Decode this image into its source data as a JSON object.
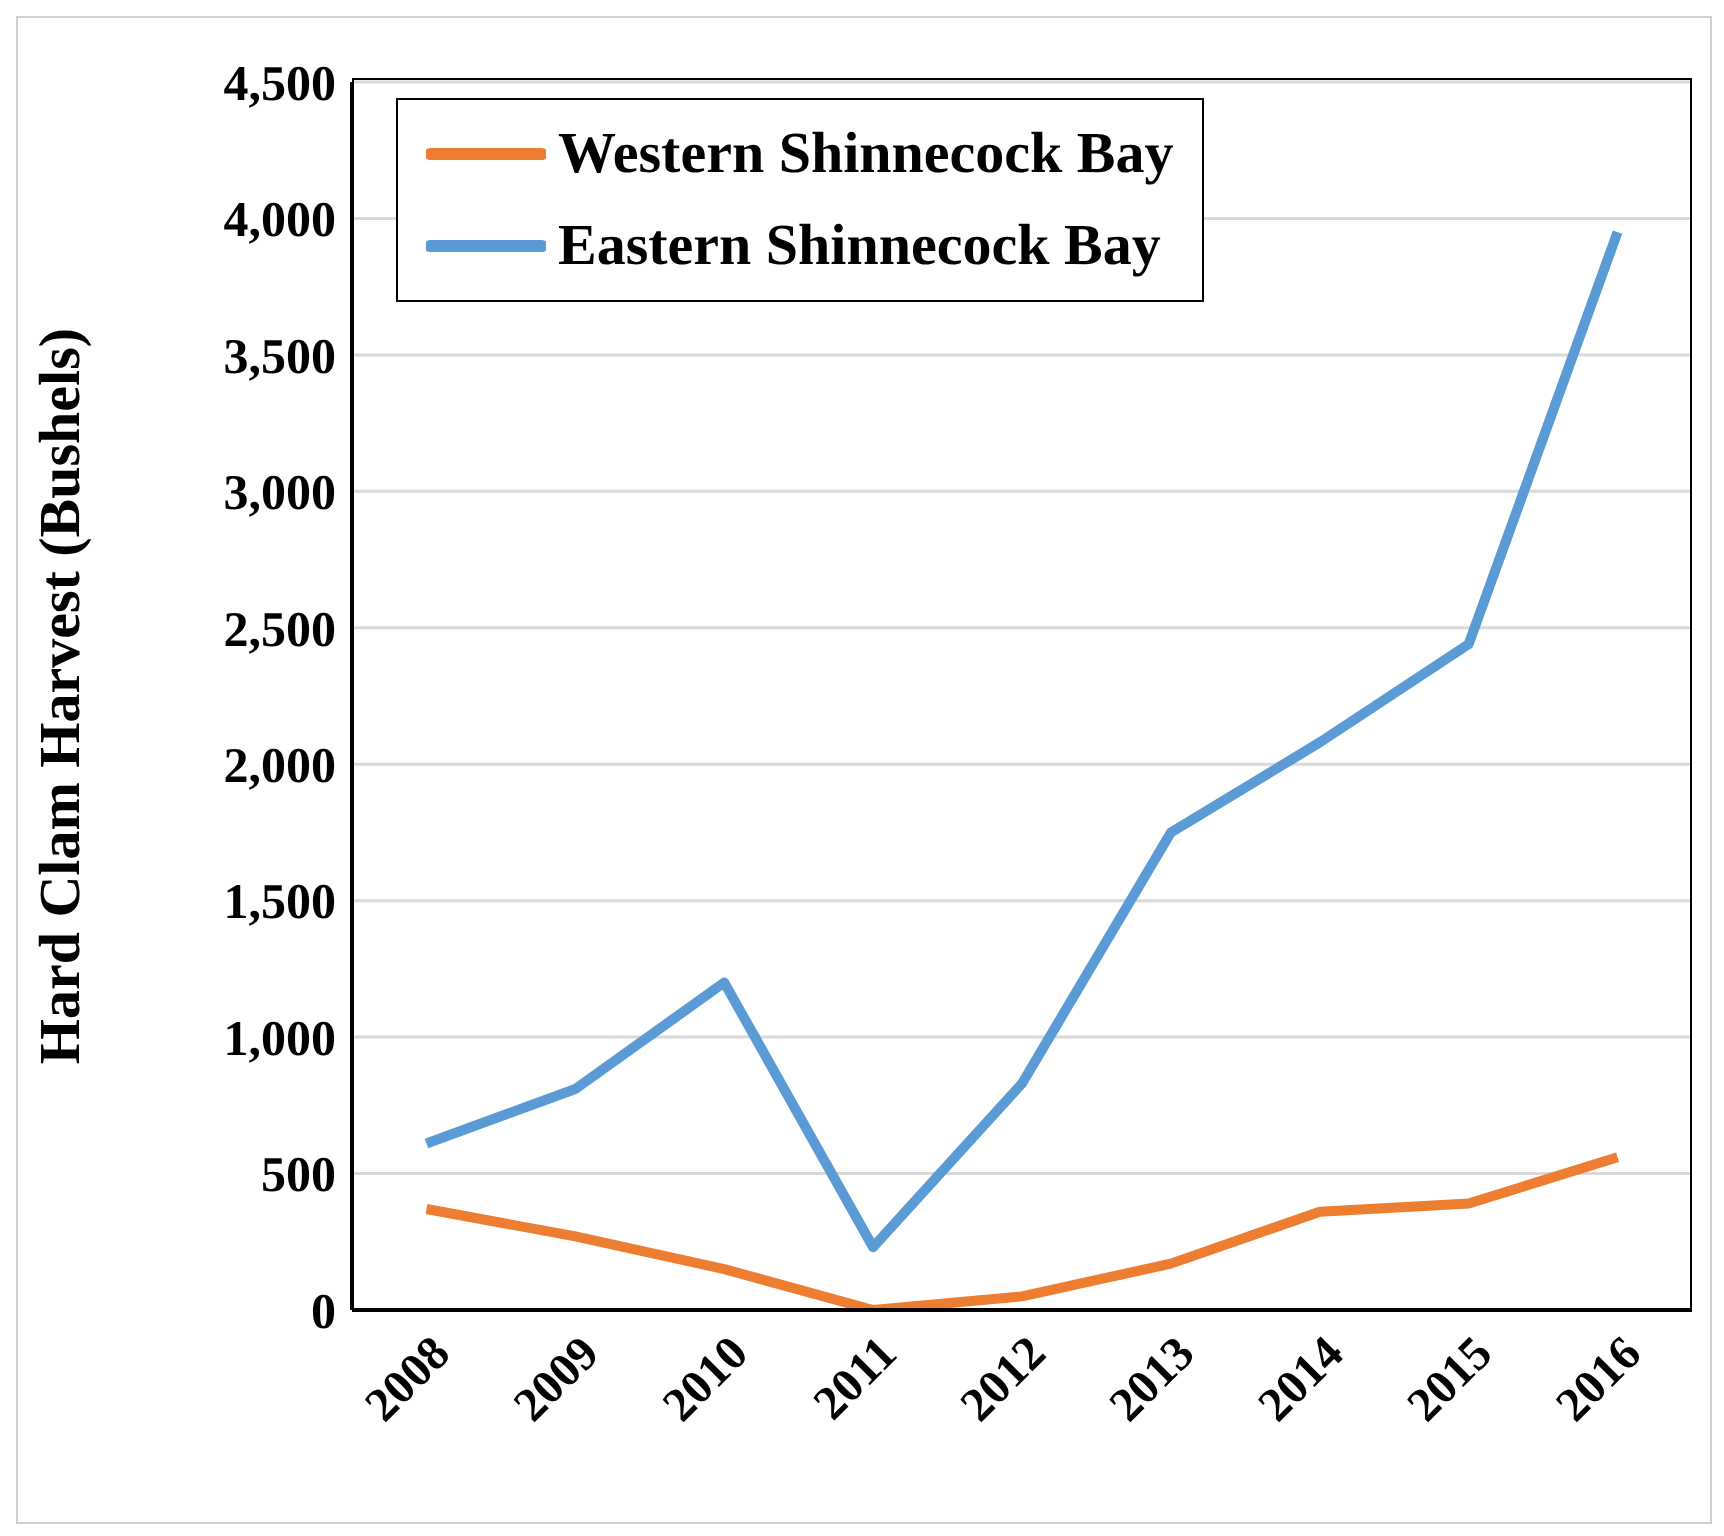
{
  "chart_data": {
    "type": "line",
    "ylabel": "Hard Clam Harvest (Bushels)",
    "categories": [
      "2008",
      "2009",
      "2010",
      "2011",
      "2012",
      "2013",
      "2014",
      "2015",
      "2016"
    ],
    "series": [
      {
        "name": "Western Shinnecock Bay",
        "color": "#ed7d31",
        "values": [
          370,
          270,
          150,
          0,
          50,
          170,
          360,
          390,
          560
        ]
      },
      {
        "name": "Eastern Shinnecock Bay",
        "color": "#5b9bd5",
        "values": [
          610,
          810,
          1200,
          230,
          830,
          1750,
          2080,
          2440,
          3950
        ]
      }
    ],
    "ylim": [
      0,
      4500
    ],
    "yticks": [
      0,
      500,
      {
        "value": 1000,
        "label": "1,000"
      },
      {
        "value": 1500,
        "label": "1,500"
      },
      {
        "value": 2000,
        "label": "2,000"
      },
      {
        "value": 2500,
        "label": "2,500"
      },
      {
        "value": 3000,
        "label": "3,000"
      },
      {
        "value": 3500,
        "label": "3,500"
      },
      {
        "value": 4000,
        "label": "4,000"
      },
      {
        "value": 4500,
        "label": "4,500"
      }
    ],
    "grid": "y",
    "legend": "top left",
    "marker": "none",
    "line_style": "solid"
  }
}
